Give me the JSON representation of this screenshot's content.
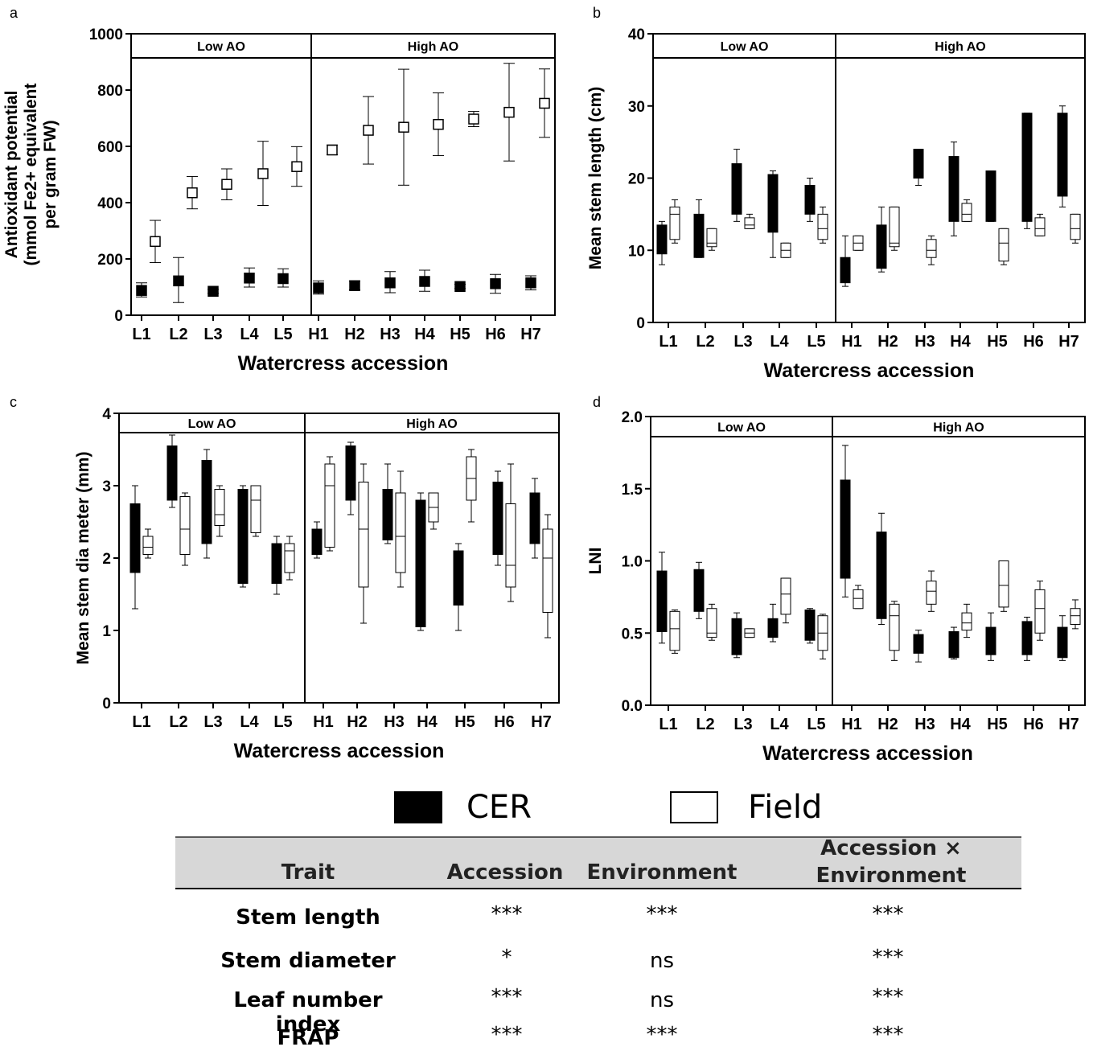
{
  "panel_letters": {
    "a": "a",
    "b": "b",
    "c": "c",
    "d": "d"
  },
  "chart_data": [
    {
      "id": "a",
      "type": "scatter",
      "ylabel_lines": [
        "Antioxidant potential",
        "(mmol Fe2+ equivalent",
        "per gram FW)"
      ],
      "xlabel": "Watercress accession",
      "groups": [
        "Low AO",
        "High AO"
      ],
      "categories": [
        "L1",
        "L2",
        "L3",
        "L4",
        "L5",
        "H1",
        "H2",
        "H3",
        "H4",
        "H5",
        "H6",
        "H7"
      ],
      "ylim": [
        0,
        1000
      ],
      "yticks": [
        "0",
        "200",
        "400",
        "600",
        "800",
        "1000"
      ],
      "ytick_values": [
        0,
        200,
        400,
        600,
        800,
        1000
      ],
      "series": [
        {
          "name": "CER",
          "values": [
            88,
            122,
            85,
            132,
            130,
            97,
            105,
            115,
            120,
            102,
            112,
            115
          ],
          "err_low": [
            65,
            45,
            78,
            100,
            100,
            75,
            90,
            80,
            85,
            95,
            78,
            90
          ],
          "err_high": [
            115,
            205,
            92,
            168,
            165,
            122,
            122,
            155,
            160,
            110,
            145,
            140
          ]
        },
        {
          "name": "Field",
          "values": [
            262,
            435,
            465,
            503,
            528,
            587,
            657,
            668,
            678,
            697,
            721,
            753
          ],
          "err_low": [
            187,
            378,
            410,
            390,
            458,
            570,
            537,
            462,
            567,
            670,
            548,
            632
          ],
          "err_high": [
            337,
            493,
            520,
            618,
            599,
            605,
            777,
            874,
            790,
            724,
            895,
            875
          ]
        }
      ]
    },
    {
      "id": "b",
      "type": "box",
      "ylabel": "Mean stem length (cm)",
      "xlabel": "Watercress accession",
      "groups": [
        "Low AO",
        "High AO"
      ],
      "categories": [
        "L1",
        "L2",
        "L3",
        "L4",
        "L5",
        "H1",
        "H2",
        "H3",
        "H4",
        "H5",
        "H6",
        "H7"
      ],
      "ylim": [
        0,
        40
      ],
      "yticks": [
        "0",
        "10",
        "20",
        "30",
        "40"
      ],
      "ytick_values": [
        0,
        10,
        20,
        30,
        40
      ],
      "series": [
        {
          "name": "CER",
          "boxes": [
            [
              8,
              9.5,
              11.5,
              13.5,
              14
            ],
            [
              9,
              9,
              12,
              15,
              17
            ],
            [
              14,
              15,
              18,
              22,
              24
            ],
            [
              9,
              12.5,
              16,
              20.5,
              21
            ],
            [
              14,
              15,
              17,
              19,
              20
            ],
            [
              5,
              5.5,
              7,
              9,
              12
            ],
            [
              7,
              7.5,
              10,
              13.5,
              16
            ],
            [
              19,
              20,
              22,
              24,
              24
            ],
            [
              12,
              14,
              18,
              23,
              25
            ],
            [
              14,
              14,
              17,
              21,
              21
            ],
            [
              13,
              14,
              20,
              29,
              29
            ],
            [
              16,
              17.5,
              23,
              29,
              30
            ]
          ]
        },
        {
          "name": "Field",
          "boxes": [
            [
              11,
              11.5,
              15,
              16,
              17
            ],
            [
              10,
              10.5,
              11,
              13,
              13
            ],
            [
              13,
              13,
              13.5,
              14.5,
              15
            ],
            [
              9,
              9,
              10,
              11,
              11
            ],
            [
              11,
              11.5,
              13,
              15,
              16
            ],
            [
              10,
              10,
              11,
              12,
              12
            ],
            [
              10,
              10.5,
              11,
              16,
              16
            ],
            [
              8,
              9,
              10,
              11.5,
              12
            ],
            [
              14,
              14,
              15,
              16.5,
              17
            ],
            [
              8,
              8.5,
              11,
              13,
              13
            ],
            [
              12,
              12,
              13,
              14.5,
              15
            ],
            [
              11,
              11.5,
              13,
              15,
              15
            ]
          ]
        }
      ]
    },
    {
      "id": "c",
      "type": "box",
      "ylabel": "Mean stem dia meter (mm)",
      "xlabel": "Watercress accession",
      "groups": [
        "Low AO",
        "High AO"
      ],
      "categories": [
        "L1",
        "L2",
        "L3",
        "L4",
        "L5",
        "H1",
        "H2",
        "H3",
        "H4",
        "H5",
        "H6",
        "H7"
      ],
      "ylim": [
        0,
        4
      ],
      "yticks": [
        "0",
        "1",
        "2",
        "3",
        "4"
      ],
      "ytick_values": [
        0,
        1,
        2,
        3,
        4
      ],
      "series": [
        {
          "name": "CER",
          "boxes": [
            [
              1.3,
              1.8,
              2.2,
              2.75,
              3.0
            ],
            [
              2.7,
              2.8,
              3.2,
              3.55,
              3.7
            ],
            [
              2.0,
              2.2,
              2.7,
              3.35,
              3.5
            ],
            [
              1.6,
              1.65,
              2.3,
              2.95,
              3.0
            ],
            [
              1.5,
              1.65,
              1.9,
              2.2,
              2.3
            ],
            [
              2.0,
              2.05,
              2.2,
              2.4,
              2.5
            ],
            [
              2.6,
              2.8,
              3.2,
              3.55,
              3.6
            ],
            [
              2.2,
              2.25,
              2.6,
              2.95,
              3.3
            ],
            [
              1.0,
              1.05,
              1.9,
              2.8,
              2.9
            ],
            [
              1.0,
              1.35,
              1.7,
              2.1,
              2.2
            ],
            [
              1.9,
              2.05,
              2.5,
              3.05,
              3.2
            ],
            [
              2.0,
              2.2,
              2.5,
              2.9,
              3.1
            ]
          ]
        },
        {
          "name": "Field",
          "boxes": [
            [
              2.0,
              2.05,
              2.15,
              2.3,
              2.4
            ],
            [
              1.9,
              2.05,
              2.4,
              2.85,
              2.9
            ],
            [
              2.3,
              2.45,
              2.6,
              2.95,
              3.0
            ],
            [
              2.3,
              2.35,
              2.8,
              3.0,
              3.0
            ],
            [
              1.7,
              1.8,
              2.1,
              2.2,
              2.3
            ],
            [
              2.1,
              2.15,
              3.0,
              3.3,
              3.4
            ],
            [
              1.1,
              1.6,
              2.4,
              3.05,
              3.3
            ],
            [
              1.6,
              1.8,
              2.3,
              2.9,
              3.2
            ],
            [
              2.4,
              2.5,
              2.7,
              2.9,
              2.9
            ],
            [
              2.5,
              2.8,
              3.1,
              3.4,
              3.5
            ],
            [
              1.4,
              1.6,
              1.9,
              2.75,
              3.3
            ],
            [
              0.9,
              1.25,
              2.0,
              2.4,
              2.6
            ]
          ]
        }
      ]
    },
    {
      "id": "d",
      "type": "box",
      "ylabel": "LNI",
      "xlabel": "Watercress accession",
      "groups": [
        "Low AO",
        "High AO"
      ],
      "categories": [
        "L1",
        "L2",
        "L3",
        "L4",
        "L5",
        "H1",
        "H2",
        "H3",
        "H4",
        "H5",
        "H6",
        "H7"
      ],
      "ylim": [
        0,
        2
      ],
      "yticks": [
        "0.0",
        "0.5",
        "1.0",
        "1.5",
        "2.0"
      ],
      "ytick_values": [
        0,
        0.5,
        1.0,
        1.5,
        2.0
      ],
      "series": [
        {
          "name": "CER",
          "boxes": [
            [
              0.43,
              0.51,
              0.68,
              0.93,
              1.06
            ],
            [
              0.6,
              0.65,
              0.82,
              0.94,
              0.99
            ],
            [
              0.33,
              0.35,
              0.5,
              0.6,
              0.64
            ],
            [
              0.44,
              0.47,
              0.55,
              0.6,
              0.7
            ],
            [
              0.43,
              0.45,
              0.6,
              0.66,
              0.67
            ],
            [
              0.75,
              0.88,
              1.3,
              1.56,
              1.8
            ],
            [
              0.56,
              0.6,
              0.9,
              1.2,
              1.33
            ],
            [
              0.3,
              0.36,
              0.47,
              0.49,
              0.52
            ],
            [
              0.32,
              0.33,
              0.42,
              0.51,
              0.54
            ],
            [
              0.31,
              0.35,
              0.45,
              0.54,
              0.64
            ],
            [
              0.31,
              0.35,
              0.5,
              0.58,
              0.61
            ],
            [
              0.31,
              0.33,
              0.45,
              0.54,
              0.62
            ]
          ]
        },
        {
          "name": "Field",
          "boxes": [
            [
              0.36,
              0.38,
              0.53,
              0.65,
              0.66
            ],
            [
              0.45,
              0.47,
              0.5,
              0.67,
              0.7
            ],
            [
              0.47,
              0.47,
              0.5,
              0.53,
              0.53
            ],
            [
              0.57,
              0.63,
              0.77,
              0.88,
              0.88
            ],
            [
              0.32,
              0.38,
              0.5,
              0.62,
              0.63
            ],
            [
              0.67,
              0.67,
              0.74,
              0.8,
              0.83
            ],
            [
              0.31,
              0.38,
              0.62,
              0.7,
              0.72
            ],
            [
              0.65,
              0.7,
              0.79,
              0.86,
              0.93
            ],
            [
              0.47,
              0.52,
              0.57,
              0.64,
              0.7
            ],
            [
              0.65,
              0.68,
              0.83,
              1.0,
              1.0
            ],
            [
              0.45,
              0.5,
              0.67,
              0.8,
              0.86
            ],
            [
              0.53,
              0.56,
              0.62,
              0.67,
              0.73
            ]
          ]
        }
      ]
    }
  ],
  "legend": {
    "cer_label": "CER",
    "field_label": "Field"
  },
  "stats_table": {
    "headers": {
      "trait": "Trait",
      "accession": "Accession",
      "environment": "Environment",
      "interaction_line1": "Accession ×",
      "interaction_line2": "Environment"
    },
    "rows": [
      {
        "trait": "Stem length",
        "accession": "***",
        "environment": "***",
        "interaction": "***"
      },
      {
        "trait": "Stem diameter",
        "accession": "*",
        "environment": "ns",
        "interaction": "***"
      },
      {
        "trait": "Leaf number index",
        "accession": "***",
        "environment": "ns",
        "interaction": "***"
      },
      {
        "trait": "FRAP",
        "accession": "***",
        "environment": "***",
        "interaction": "***"
      }
    ]
  }
}
